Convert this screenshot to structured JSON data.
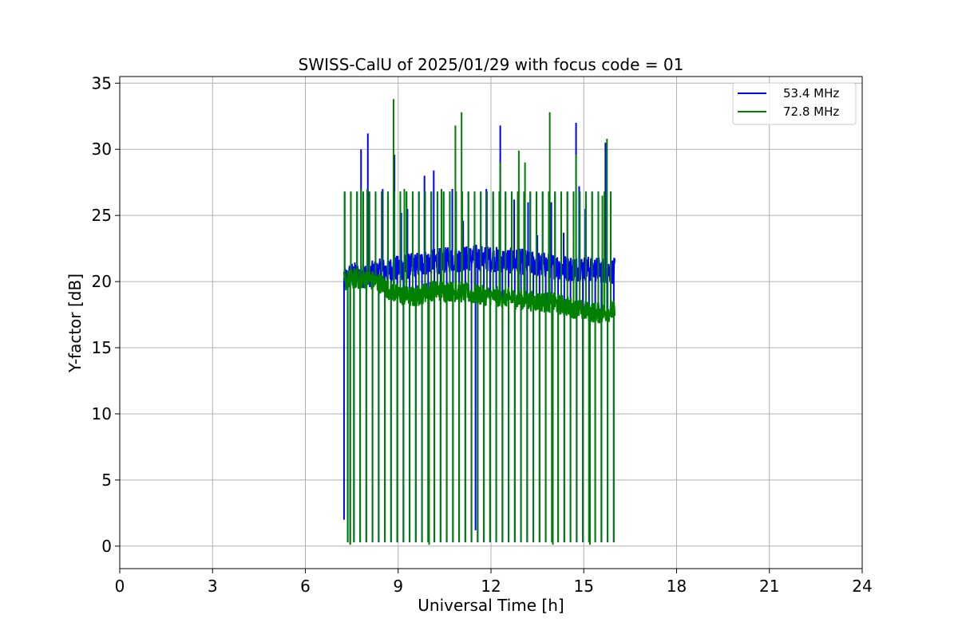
{
  "chart_data": {
    "type": "line",
    "title": "SWISS-CalU of 2025/01/29 with focus code = 01",
    "xlabel": "Universal Time [h]",
    "ylabel": "Y-factor [dB]",
    "xlim": [
      0,
      24
    ],
    "ylim": [
      -1.7,
      35.5
    ],
    "xticks": [
      0,
      3,
      6,
      9,
      12,
      15,
      18,
      21,
      24
    ],
    "yticks": [
      0,
      5,
      10,
      15,
      20,
      25,
      30,
      35
    ],
    "grid": true,
    "legend_position": "top-right",
    "series": [
      {
        "name": "53.4 MHz",
        "color": "#0000ff",
        "base_x": [
          7.25,
          7.5,
          8.0,
          8.5,
          9.0,
          9.5,
          10.0,
          10.5,
          11.0,
          11.5,
          12.0,
          12.5,
          13.0,
          13.5,
          14.0,
          14.5,
          15.0,
          15.5,
          16.0
        ],
        "base_y": [
          20.0,
          20.5,
          20.5,
          20.8,
          21.0,
          21.2,
          21.5,
          21.6,
          21.7,
          21.8,
          21.7,
          21.6,
          21.5,
          21.3,
          21.2,
          21.0,
          21.0,
          20.9,
          20.8
        ],
        "band": 1.0,
        "spikes": [
          [
            7.25,
            2.0
          ],
          [
            7.45,
            0.2
          ],
          [
            7.8,
            30.0
          ],
          [
            8.02,
            31.2
          ],
          [
            8.5,
            27.0
          ],
          [
            8.88,
            29.6
          ],
          [
            9.1,
            25.2
          ],
          [
            9.3,
            25.5
          ],
          [
            9.85,
            28.0
          ],
          [
            10.15,
            28.4
          ],
          [
            10.75,
            27.0
          ],
          [
            11.1,
            24.6
          ],
          [
            11.5,
            1.2
          ],
          [
            11.85,
            27.0
          ],
          [
            12.3,
            31.8
          ],
          [
            12.75,
            26.2
          ],
          [
            13.2,
            26.0
          ],
          [
            13.5,
            23.5
          ],
          [
            13.95,
            26.0
          ],
          [
            14.35,
            23.7
          ],
          [
            14.75,
            32.0
          ],
          [
            14.85,
            27.2
          ],
          [
            15.05,
            25.5
          ],
          [
            15.7,
            30.5
          ]
        ]
      },
      {
        "name": "72.8 MHz",
        "color": "#008000",
        "base_x": [
          7.25,
          7.5,
          8.0,
          8.5,
          8.7,
          9.0,
          9.5,
          10.0,
          10.5,
          11.0,
          11.5,
          12.0,
          12.5,
          13.0,
          13.5,
          14.0,
          14.5,
          15.0,
          15.5,
          16.0
        ],
        "base_y": [
          20.0,
          20.2,
          20.2,
          19.8,
          19.4,
          19.0,
          18.8,
          19.3,
          19.3,
          19.2,
          19.0,
          18.9,
          18.8,
          18.6,
          18.5,
          18.4,
          18.1,
          17.8,
          17.6,
          17.8
        ],
        "band": 0.8,
        "spikes": [
          [
            7.45,
            0.1
          ],
          [
            7.8,
            27.0
          ],
          [
            8.0,
            27.0
          ],
          [
            8.85,
            33.8
          ],
          [
            9.2,
            27.0
          ],
          [
            10.0,
            0.1
          ],
          [
            10.4,
            27.0
          ],
          [
            10.85,
            31.8
          ],
          [
            11.05,
            32.8
          ],
          [
            12.3,
            29.0
          ],
          [
            12.9,
            29.9
          ],
          [
            13.1,
            29.0
          ],
          [
            13.9,
            32.8
          ],
          [
            14.0,
            0.1
          ],
          [
            14.75,
            29.6
          ],
          [
            15.2,
            0.1
          ],
          [
            15.6,
            26.5
          ],
          [
            15.75,
            30.8
          ]
        ]
      }
    ]
  }
}
